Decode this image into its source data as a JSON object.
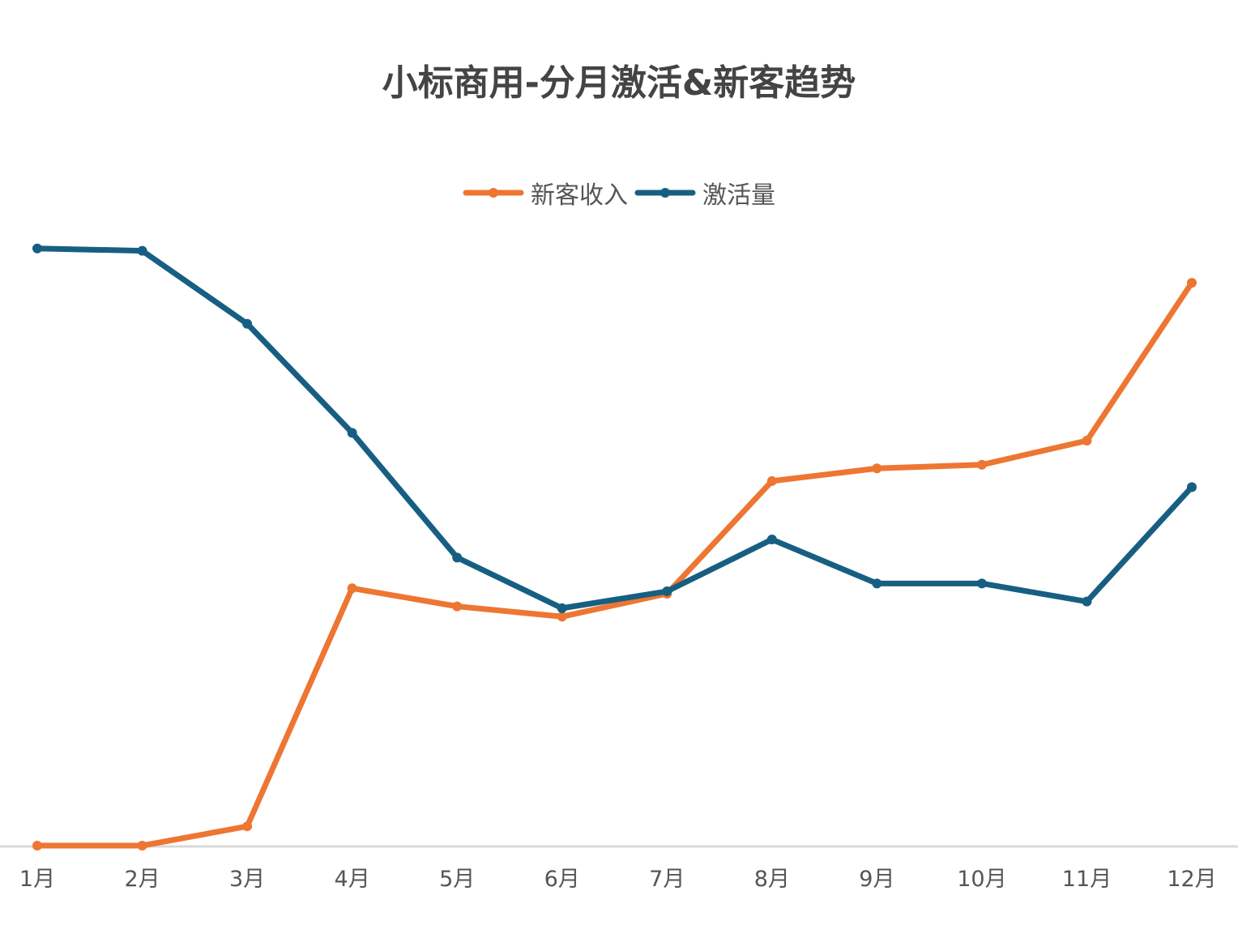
{
  "chart_data": {
    "type": "line",
    "title": "小标商用-分月激活&新客趋势",
    "xlabel": "",
    "ylabel": "",
    "categories": [
      "1月",
      "2月",
      "3月",
      "4月",
      "5月",
      "6月",
      "7月",
      "8月",
      "9月",
      "10月",
      "11月",
      "12月"
    ],
    "series": [
      {
        "name": "新客收入",
        "color": "#ED7633",
        "values": [
          0,
          0,
          3.2,
          42.7,
          39.7,
          38.0,
          41.8,
          60.5,
          62.6,
          63.2,
          67.2,
          93.4
        ]
      },
      {
        "name": "激活量",
        "color": "#175F82",
        "values": [
          99.1,
          98.7,
          86.6,
          68.5,
          47.8,
          39.4,
          42.2,
          50.8,
          43.5,
          43.5,
          40.5,
          59.5
        ]
      }
    ],
    "ylim": [
      0,
      100
    ],
    "y_axis_visible": false,
    "grid": false,
    "legend_position": "top",
    "note": "No y-axis labels shown; values are relative (0-100) estimated from pixel positions"
  }
}
